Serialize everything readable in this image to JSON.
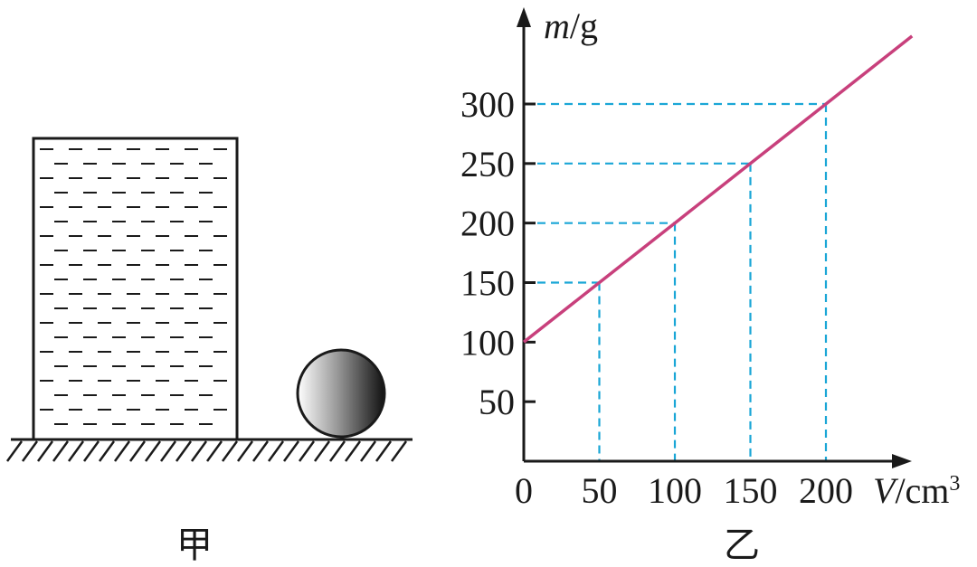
{
  "figure_a": {
    "caption": "甲",
    "container": {
      "content": "liquid",
      "fill_pattern": "horizontal dashes"
    },
    "ball": {
      "shading": "gradient light to dark"
    }
  },
  "figure_b": {
    "caption": "乙"
  },
  "chart_data": {
    "type": "line",
    "title": "",
    "xlabel": "V/cm³",
    "ylabel": "m/g",
    "xlabel_var": "V",
    "xlabel_unit": "/cm",
    "xlabel_exp": "3",
    "ylabel_var": "m",
    "ylabel_unit": "/g",
    "origin_label": "0",
    "x_ticks": [
      50,
      100,
      150,
      200
    ],
    "y_ticks": [
      50,
      100,
      150,
      200,
      250,
      300
    ],
    "xlim": [
      0,
      250
    ],
    "ylim": [
      0,
      360
    ],
    "series": [
      {
        "x": [
          0,
          50,
          100,
          150,
          200,
          257
        ],
        "y": [
          100,
          150,
          200,
          250,
          300,
          357
        ],
        "color": "#c8407c"
      }
    ],
    "guides": [
      {
        "x": 50,
        "y": 150
      },
      {
        "x": 100,
        "y": 200
      },
      {
        "x": 150,
        "y": 250
      },
      {
        "x": 200,
        "y": 300
      }
    ],
    "guide_color": "#1aa6d6",
    "grid": false,
    "legend": "none"
  }
}
